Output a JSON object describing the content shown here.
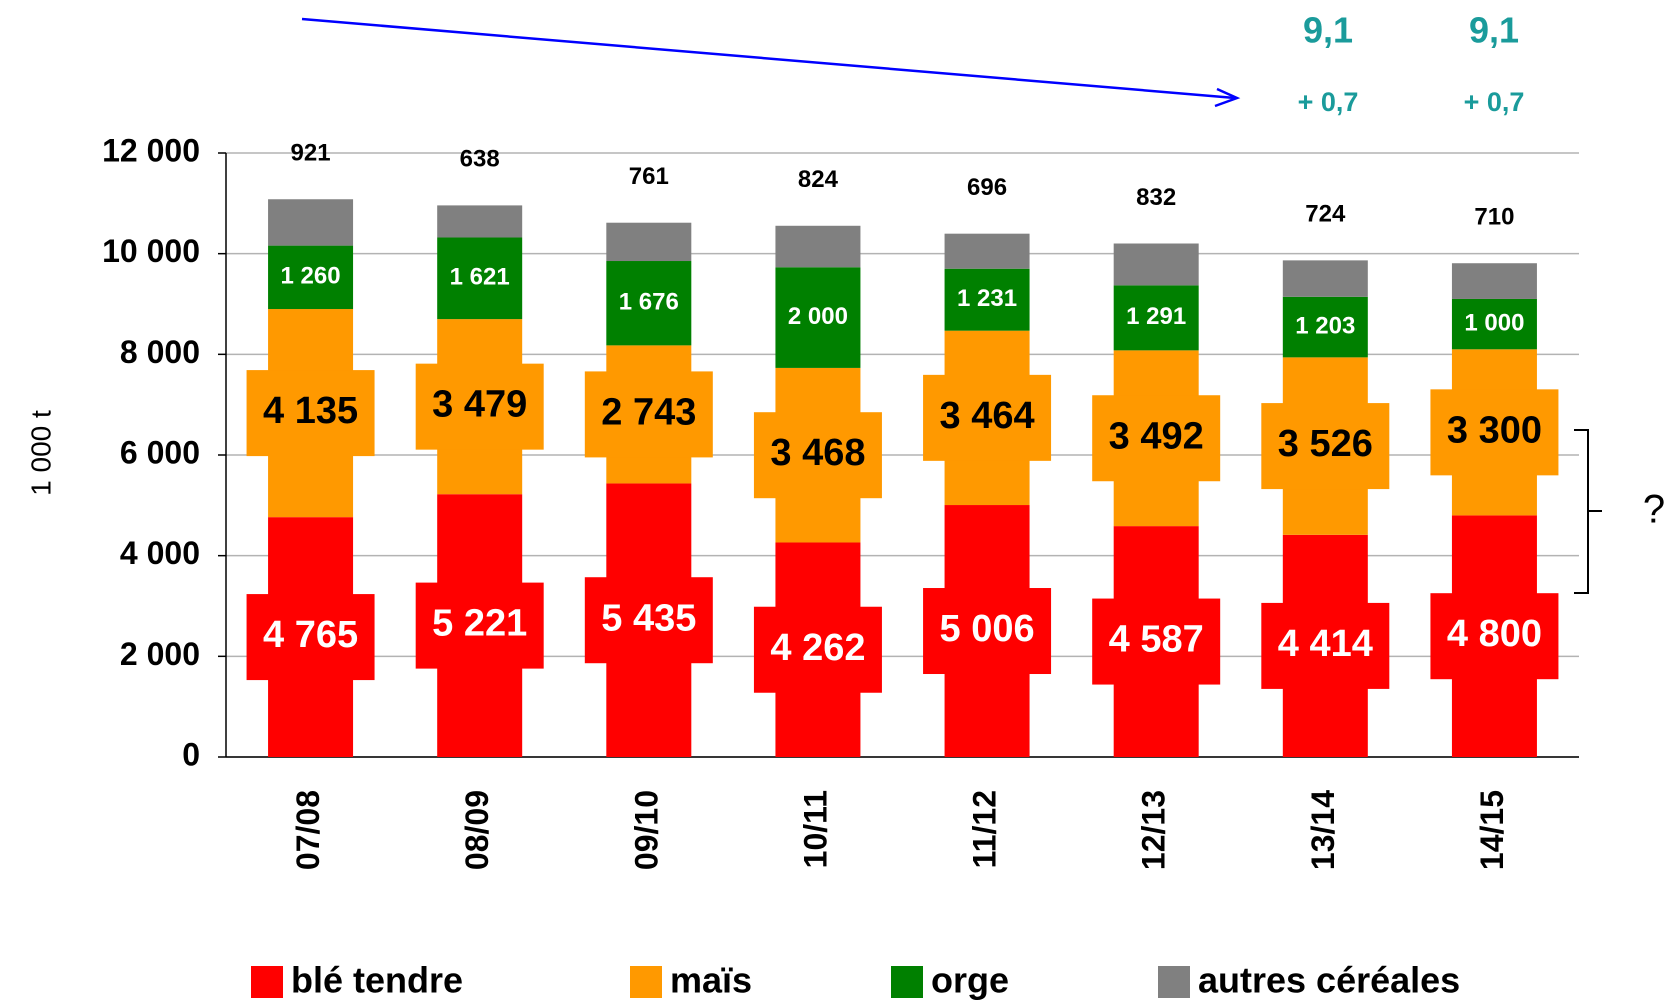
{
  "chart_data": {
    "type": "stacked_bar",
    "ylabel": "1 000 t",
    "categories": [
      "07/08",
      "08/09",
      "09/10",
      "10/11",
      "11/12",
      "12/13",
      "13/14",
      "14/15"
    ],
    "series": [
      {
        "name": "blé tendre",
        "color": "#ff0000",
        "values": [
          4765,
          5221,
          5435,
          4262,
          5006,
          4587,
          4414,
          4800
        ],
        "value_labels": [
          "4 765",
          "5 221",
          "5 435",
          "4 262",
          "5 006",
          "4 587",
          "4 414",
          "4 800"
        ]
      },
      {
        "name": "maïs",
        "color": "#ff9900",
        "values": [
          4135,
          3479,
          2743,
          3468,
          3464,
          3492,
          3526,
          3300
        ],
        "value_labels": [
          "4 135",
          "3 479",
          "2 743",
          "3 468",
          "3 464",
          "3 492",
          "3 526",
          "3 300"
        ]
      },
      {
        "name": "orge",
        "color": "#008000",
        "values": [
          1260,
          1621,
          1676,
          2000,
          1231,
          1291,
          1203,
          1000
        ],
        "value_labels": [
          "1 260",
          "1 621",
          "1 676",
          "2 000",
          "1 231",
          "1 291",
          "1 203",
          "1 000"
        ]
      },
      {
        "name": "autres céréales",
        "color": "#808080",
        "values": [
          921,
          638,
          761,
          824,
          696,
          832,
          724,
          710
        ]
      }
    ],
    "ylim": [
      0,
      12000
    ],
    "yticks": [
      0,
      {
        "value": 2000,
        "label": "2 000"
      },
      {
        "value": 4000,
        "label": "4 000"
      },
      {
        "value": 6000,
        "label": "6 000"
      },
      {
        "value": 8000,
        "label": "8 000"
      },
      {
        "value": 10000,
        "label": "10 000"
      },
      {
        "value": 12000,
        "label": "12 000"
      }
    ],
    "grid": true,
    "legend": "bottom",
    "annotations": [
      "9,1",
      "9,1",
      "+ 0,7",
      "+ 0,7",
      "?"
    ]
  }
}
